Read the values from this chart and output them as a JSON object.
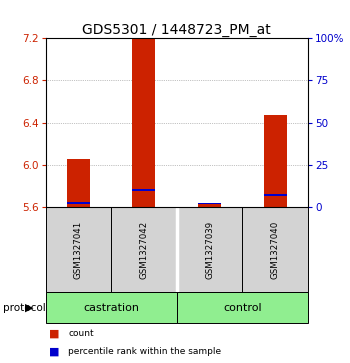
{
  "title": "GDS5301 / 1448723_PM_at",
  "samples": [
    "GSM1327041",
    "GSM1327042",
    "GSM1327039",
    "GSM1327040"
  ],
  "ylim_left": [
    5.6,
    7.2
  ],
  "ylim_right": [
    0,
    100
  ],
  "yticks_left": [
    5.6,
    6.0,
    6.4,
    6.8,
    7.2
  ],
  "yticks_right": [
    0,
    25,
    50,
    75,
    100
  ],
  "ytick_labels_right": [
    "0",
    "25",
    "50",
    "75",
    "100%"
  ],
  "baseline": 5.6,
  "red_values": [
    6.05,
    7.2,
    5.63,
    6.47
  ],
  "blue_values_pct": [
    2.5,
    10.0,
    2.0,
    7.0
  ],
  "bar_color": "#CC2200",
  "blue_color": "#0000CC",
  "sample_box_color": "#D3D3D3",
  "protocol_box_color": "#90EE90",
  "left_axis_color": "#CC2200",
  "right_axis_color": "#0000CC",
  "grid_color": "#888888",
  "title_fontsize": 10,
  "tick_fontsize": 7.5,
  "bar_width": 0.35,
  "castration_samples": [
    0,
    1
  ],
  "control_samples": [
    2,
    3
  ]
}
